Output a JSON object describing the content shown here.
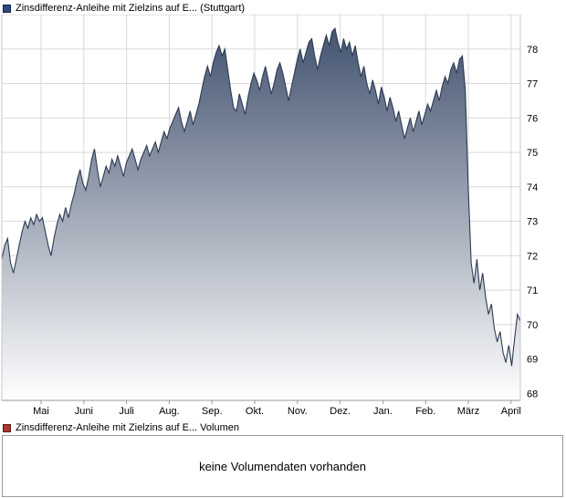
{
  "price_panel": {
    "legend": {
      "label": "Zinsdifferenz-Anleihe mit Zielzins auf E... (Stuttgart)",
      "marker_color": "#2e4a80",
      "marker_border": "#14213d"
    }
  },
  "volume_panel": {
    "legend": {
      "label": "Zinsdifferenz-Anleihe mit Zielzins auf E... Volumen",
      "marker_color": "#b03431",
      "marker_border": "#5d1614"
    },
    "message": "keine Volumendaten vorhanden"
  },
  "chart_data": {
    "type": "area",
    "title": "Zinsdifferenz-Anleihe mit Zielzins auf E... (Stuttgart)",
    "xlabel": "",
    "ylabel": "",
    "legend_position": "top-left",
    "grid": true,
    "x_tick_labels": [
      "Mai",
      "Juni",
      "Juli",
      "Aug.",
      "Sep.",
      "Okt.",
      "Nov.",
      "Dez.",
      "Jan.",
      "Feb.",
      "März",
      "April"
    ],
    "y_ticks": [
      78,
      77,
      76,
      75,
      74,
      73,
      72,
      71,
      70,
      69,
      68
    ],
    "ylim": [
      67.8,
      79.0
    ],
    "colors": {
      "line": "#2c3a52",
      "fill_top": "#3c4d6a",
      "fill_bottom": "#ffffff",
      "grid": "#d9d9d9",
      "axis": "#999999",
      "border": "#c8c8c8"
    },
    "values": [
      71.9,
      72.3,
      72.5,
      71.8,
      71.5,
      71.9,
      72.3,
      72.7,
      73.0,
      72.8,
      73.1,
      72.9,
      73.2,
      73.0,
      73.1,
      72.7,
      72.3,
      72.0,
      72.5,
      72.9,
      73.2,
      73.0,
      73.4,
      73.1,
      73.5,
      73.8,
      74.2,
      74.5,
      74.1,
      73.9,
      74.3,
      74.8,
      75.1,
      74.5,
      74.0,
      74.3,
      74.6,
      74.4,
      74.8,
      74.6,
      74.9,
      74.6,
      74.3,
      74.7,
      74.9,
      75.1,
      74.8,
      74.5,
      74.8,
      75.0,
      75.2,
      74.9,
      75.1,
      75.3,
      75.0,
      75.3,
      75.6,
      75.4,
      75.7,
      75.9,
      76.1,
      76.3,
      75.9,
      75.6,
      75.9,
      76.2,
      75.8,
      76.1,
      76.4,
      76.8,
      77.2,
      77.5,
      77.2,
      77.6,
      77.9,
      78.1,
      77.8,
      78.0,
      77.4,
      76.8,
      76.3,
      76.2,
      76.7,
      76.4,
      76.1,
      76.6,
      77.0,
      77.3,
      77.1,
      76.8,
      77.2,
      77.5,
      77.1,
      76.7,
      77.0,
      77.4,
      77.6,
      77.3,
      76.9,
      76.5,
      76.9,
      77.3,
      77.7,
      78.0,
      77.6,
      77.9,
      78.2,
      78.3,
      77.8,
      77.4,
      77.8,
      78.1,
      78.4,
      78.1,
      78.5,
      78.6,
      78.2,
      77.9,
      78.3,
      78.0,
      78.2,
      77.8,
      78.1,
      77.6,
      77.2,
      77.5,
      77.0,
      76.7,
      77.1,
      76.8,
      76.4,
      76.9,
      76.6,
      76.2,
      76.6,
      76.3,
      75.9,
      76.2,
      75.8,
      75.4,
      75.7,
      76.0,
      75.6,
      75.9,
      76.2,
      75.8,
      76.1,
      76.4,
      76.2,
      76.5,
      76.8,
      76.5,
      76.9,
      77.2,
      77.0,
      77.4,
      77.6,
      77.3,
      77.7,
      77.8,
      76.8,
      74.0,
      71.8,
      71.2,
      71.9,
      71.0,
      71.5,
      70.8,
      70.3,
      70.6,
      69.9,
      69.5,
      69.8,
      69.2,
      68.9,
      69.4,
      68.8,
      69.6,
      70.3,
      70.1
    ]
  }
}
